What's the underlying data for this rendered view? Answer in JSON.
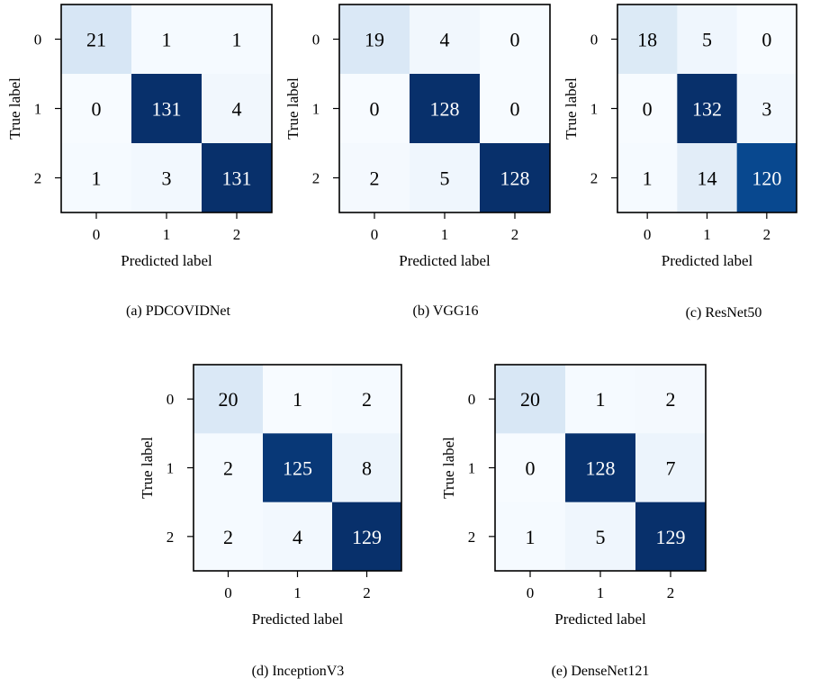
{
  "chart_data": [
    {
      "type": "heatmap",
      "caption": "(a) PDCOVIDNet",
      "xlabel": "Predicted label",
      "ylabel": "True label",
      "x_ticks": [
        "0",
        "1",
        "2"
      ],
      "y_ticks": [
        "0",
        "1",
        "2"
      ],
      "matrix": [
        [
          21,
          1,
          1
        ],
        [
          0,
          131,
          4
        ],
        [
          1,
          3,
          131
        ]
      ],
      "colormap": "Blues",
      "grid": false
    },
    {
      "type": "heatmap",
      "caption": "(b) VGG16",
      "xlabel": "Predicted label",
      "ylabel": "True label",
      "x_ticks": [
        "0",
        "1",
        "2"
      ],
      "y_ticks": [
        "0",
        "1",
        "2"
      ],
      "matrix": [
        [
          19,
          4,
          0
        ],
        [
          0,
          128,
          0
        ],
        [
          2,
          5,
          128
        ]
      ],
      "colormap": "Blues",
      "grid": false
    },
    {
      "type": "heatmap",
      "caption": "(c) ResNet50",
      "xlabel": "Predicted label",
      "ylabel": "True label",
      "x_ticks": [
        "0",
        "1",
        "2"
      ],
      "y_ticks": [
        "0",
        "1",
        "2"
      ],
      "matrix": [
        [
          18,
          5,
          0
        ],
        [
          0,
          132,
          3
        ],
        [
          1,
          14,
          120
        ]
      ],
      "colormap": "Blues",
      "grid": false
    },
    {
      "type": "heatmap",
      "caption": "(d) InceptionV3",
      "xlabel": "Predicted label",
      "ylabel": "True label",
      "x_ticks": [
        "0",
        "1",
        "2"
      ],
      "y_ticks": [
        "0",
        "1",
        "2"
      ],
      "matrix": [
        [
          20,
          1,
          2
        ],
        [
          2,
          125,
          8
        ],
        [
          2,
          4,
          129
        ]
      ],
      "colormap": "Blues",
      "grid": false
    },
    {
      "type": "heatmap",
      "caption": "(e) DenseNet121",
      "xlabel": "Predicted label",
      "ylabel": "True label",
      "x_ticks": [
        "0",
        "1",
        "2"
      ],
      "y_ticks": [
        "0",
        "1",
        "2"
      ],
      "matrix": [
        [
          20,
          1,
          2
        ],
        [
          0,
          128,
          7
        ],
        [
          1,
          5,
          129
        ]
      ],
      "colormap": "Blues",
      "grid": false
    }
  ]
}
